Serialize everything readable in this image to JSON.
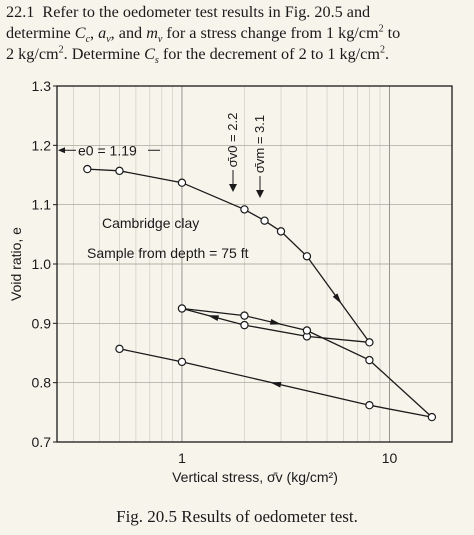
{
  "problem": {
    "number": "22.1",
    "line1_text": "Refer to the oedometer test results in Fig. 20.5 and",
    "line2_a": "determine ",
    "line2_cc": "C",
    "line2_cc_sub": "c",
    "line2_b": ", ",
    "line2_av": "a",
    "line2_av_sub": "v",
    "line2_c": ", and ",
    "line2_mv": "m",
    "line2_mv_sub": "v",
    "line2_d": " for a stress change from 1 kg/cm",
    "line2_sup": "2",
    "line2_e": " to",
    "line3_a": "2 kg/cm",
    "line3_sup1": "2",
    "line3_b": ".  Determine ",
    "line3_cs": "C",
    "line3_cs_sub": "s",
    "line3_c": " for the decrement of 2 to 1 kg/cm",
    "line3_sup2": "2",
    "line3_d": "."
  },
  "caption": "Fig. 20.5   Results of oedometer test.",
  "chart_data": {
    "type": "line",
    "xlabel": "Vertical stress, σ̄v (kg/cm²)",
    "ylabel": "Void ratio, e",
    "x_scale": "log",
    "xlim": [
      0.25,
      20
    ],
    "ylim": [
      0.7,
      1.3
    ],
    "x_ticks": [
      1,
      10
    ],
    "x_tick_labels": [
      "1",
      "10"
    ],
    "y_ticks": [
      0.7,
      0.8,
      0.9,
      1.0,
      1.1,
      1.2,
      1.3
    ],
    "y_tick_labels": [
      "0.7",
      "0.8",
      "0.9",
      "1.0",
      "1.1",
      "1.2",
      "1.3"
    ],
    "grid": true,
    "series": [
      {
        "points": [
          [
            0.35,
            1.16
          ],
          [
            0.5,
            1.157
          ],
          [
            1.0,
            1.137
          ],
          [
            2.0,
            1.092
          ],
          [
            2.5,
            1.073
          ],
          [
            3.0,
            1.055
          ],
          [
            4.0,
            1.013
          ],
          [
            8.0,
            0.868
          ]
        ]
      },
      {
        "points": [
          [
            8.0,
            0.868
          ],
          [
            4.0,
            0.878
          ],
          [
            2.0,
            0.897
          ],
          [
            1.0,
            0.925
          ]
        ]
      },
      {
        "points": [
          [
            1.0,
            0.925
          ],
          [
            2.0,
            0.913
          ],
          [
            4.0,
            0.888
          ],
          [
            8.0,
            0.838
          ],
          [
            16.0,
            0.742
          ]
        ]
      },
      {
        "points": [
          [
            16.0,
            0.742
          ],
          [
            8.0,
            0.762
          ],
          [
            1.0,
            0.835
          ],
          [
            0.5,
            0.857
          ]
        ]
      }
    ],
    "annotations": {
      "e0": "e0 = 1.19",
      "cambridge": "Cambridge clay",
      "sample": "Sample from depth = 75 ft",
      "sigma_v0": "σ̄v0 = 2.2",
      "sigma_vm": "σ̄vm = 3.1"
    }
  }
}
